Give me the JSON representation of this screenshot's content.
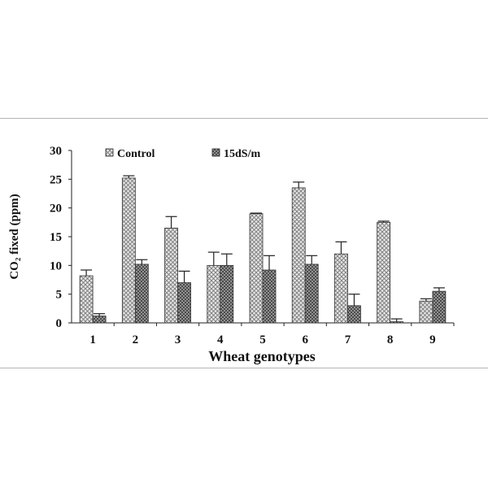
{
  "chart_data": {
    "type": "bar",
    "xlabel": "Wheat genotypes",
    "ylabel": "CO₂ fixed (ppm)",
    "ylim": [
      0,
      30
    ],
    "yticks": [
      0,
      5,
      10,
      15,
      20,
      25,
      30
    ],
    "grid": false,
    "legend_position": "top-left",
    "categories": [
      "1",
      "2",
      "3",
      "4",
      "5",
      "6",
      "7",
      "8",
      "9"
    ],
    "series": [
      {
        "name": "Control",
        "pattern": "crosshatch-light",
        "values": [
          8.2,
          25.2,
          16.5,
          10.0,
          19.0,
          23.5,
          12.0,
          17.5,
          3.8
        ],
        "errors": [
          1.0,
          0.4,
          2.0,
          2.3,
          0.1,
          1.0,
          2.1,
          0.2,
          0.4
        ]
      },
      {
        "name": "15dS/m",
        "pattern": "crosshatch-dark",
        "values": [
          1.2,
          10.2,
          7.0,
          10.0,
          9.2,
          10.2,
          3.0,
          0.2,
          5.5
        ],
        "errors": [
          0.4,
          0.8,
          2.0,
          2.0,
          2.5,
          1.5,
          2.0,
          0.5,
          0.6
        ]
      }
    ]
  }
}
